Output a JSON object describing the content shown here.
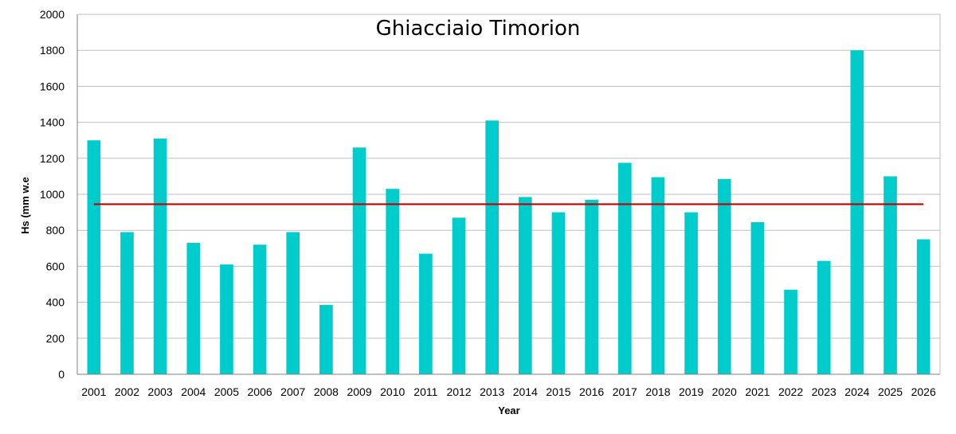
{
  "chart_data": {
    "type": "bar",
    "title": "Ghiacciaio Timorion",
    "xlabel": "Year",
    "ylabel": "Hs (mm w.e",
    "ylim": [
      0,
      2000
    ],
    "yticks": [
      0,
      200,
      400,
      600,
      800,
      1000,
      1200,
      1400,
      1600,
      1800,
      2000
    ],
    "grid": true,
    "categories": [
      "2001",
      "2002",
      "2003",
      "2004",
      "2005",
      "2006",
      "2007",
      "2008",
      "2009",
      "2010",
      "2011",
      "2012",
      "2013",
      "2014",
      "2015",
      "2016",
      "2017",
      "2018",
      "2019",
      "2020",
      "2021",
      "2022",
      "2023",
      "2024",
      "2025",
      "2026"
    ],
    "series": [
      {
        "values": [
          1300,
          790,
          1310,
          730,
          610,
          720,
          790,
          385,
          1260,
          1030,
          670,
          870,
          1410,
          985,
          900,
          970,
          1175,
          1095,
          900,
          1085,
          845,
          470,
          630,
          1800,
          1100,
          750
        ]
      }
    ],
    "reference_line": {
      "value": 945
    },
    "colors": {
      "bar": "#00CCCC",
      "reference_line": "#C00000",
      "grid": "#BFBFBF",
      "axis": "#808080"
    }
  }
}
